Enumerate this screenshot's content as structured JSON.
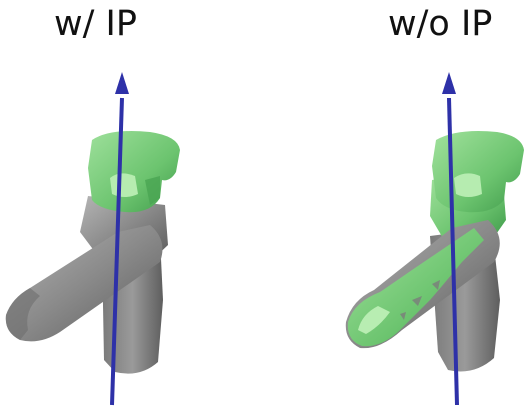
{
  "labels": {
    "with_ip": "w/ IP",
    "without_ip": "w/o IP"
  },
  "colors": {
    "background": "#ffffff",
    "text": "#111111",
    "mesh_gray": "#8a8a8a",
    "mesh_gray_dark": "#5f5f5f",
    "mesh_green": "#7ccf7c",
    "mesh_green_dark": "#3f9a4a",
    "axis_blue": "#2e31a8"
  },
  "panels": [
    {
      "id": "with_ip",
      "object": "faucet-mesh",
      "overlay": "green-contact-region-on-handle"
    },
    {
      "id": "without_ip",
      "object": "faucet-mesh",
      "overlay": "green-contact-region-on-handle-and-spout"
    }
  ]
}
